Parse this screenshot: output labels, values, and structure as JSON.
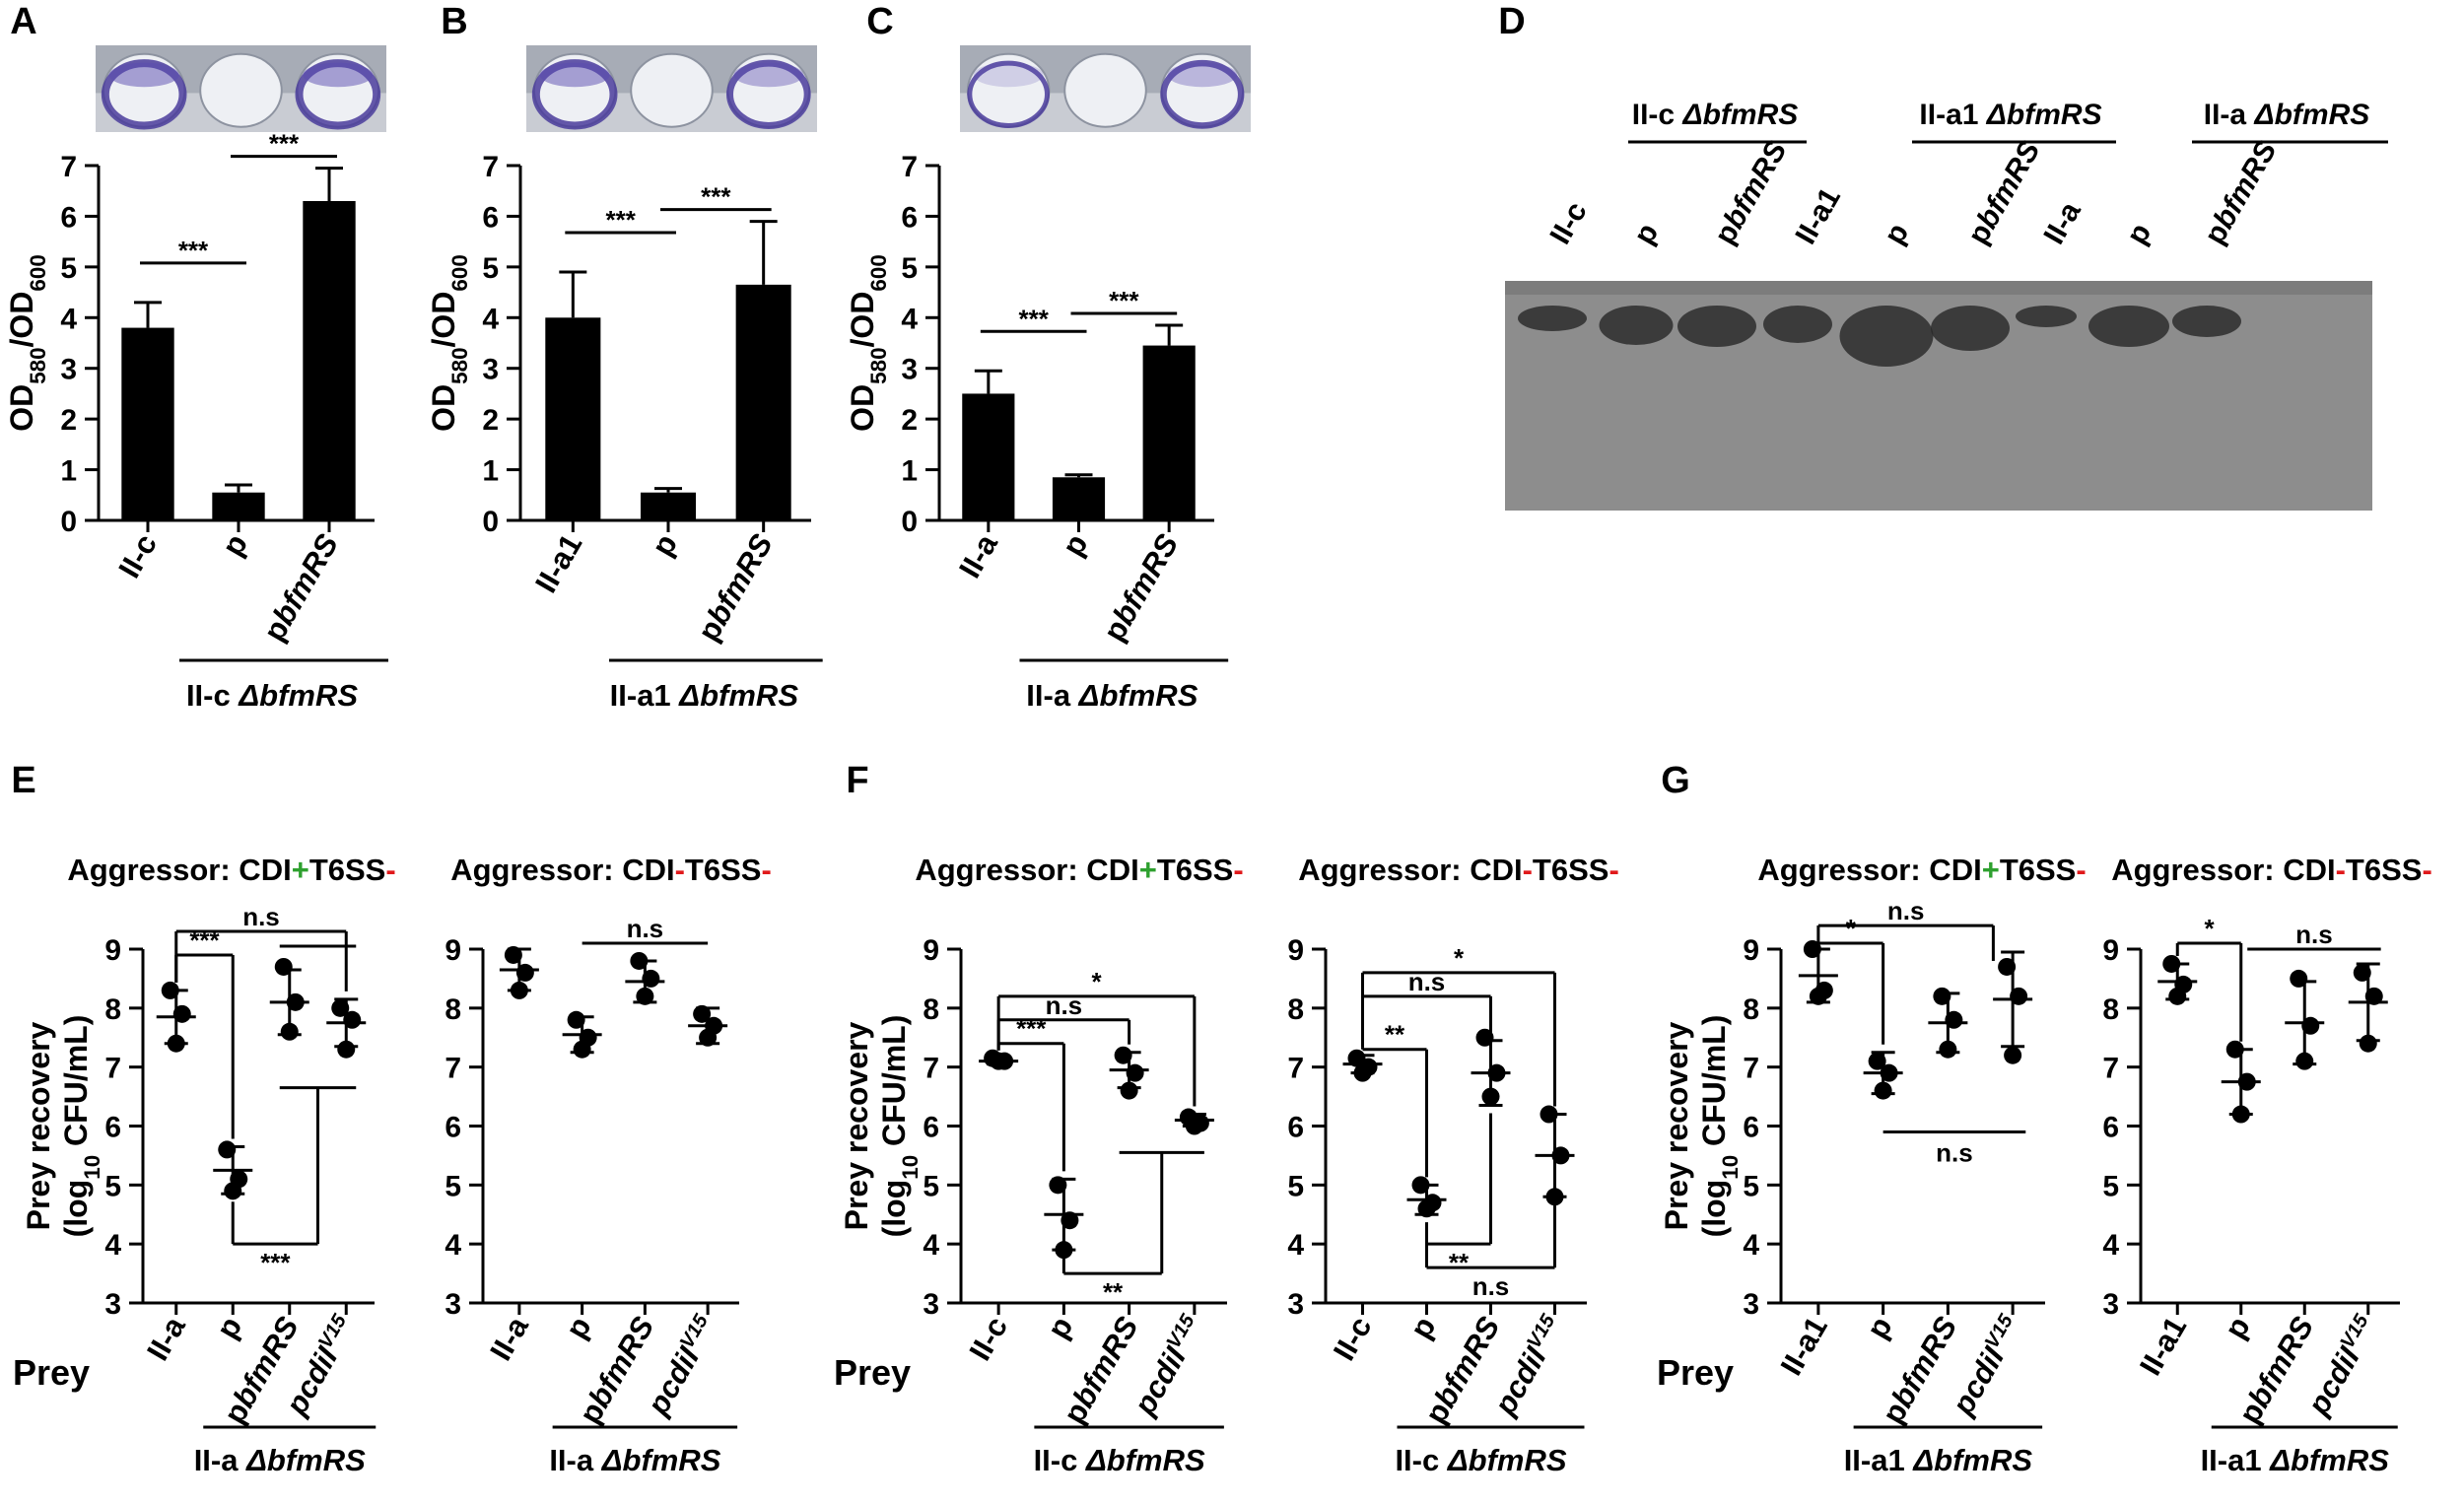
{
  "panel_letters": [
    "A",
    "B",
    "C",
    "D",
    "E",
    "F",
    "G"
  ],
  "colors": {
    "bar": "#000000",
    "plus": "#2ea02f",
    "minus": "#e0191b",
    "gel_bg": "#8d8d8d",
    "band": "#2a2a2a"
  },
  "gel": {
    "group_labels": [
      "II-c ΔbfmRS",
      "II-a1 ΔbfmRS",
      "II-a ΔbfmRS"
    ],
    "lanes": [
      "II-c",
      "p",
      "pbfmRS",
      "II-a1",
      "p",
      "pbfmRS",
      "II-a",
      "p",
      "pbfmRS"
    ]
  },
  "chart_data": [
    {
      "id": "A",
      "type": "bar",
      "ylabel": "OD580/OD600",
      "ylim": [
        0,
        7
      ],
      "yticks": [
        "0",
        "1",
        "2",
        "3",
        "4",
        "5",
        "6",
        "7"
      ],
      "categories": [
        "II-c",
        "p",
        "pbfmRS"
      ],
      "values": [
        3.8,
        0.55,
        6.3
      ],
      "errors": [
        0.5,
        0.15,
        0.65
      ],
      "group_label": "II-c ΔbfmRS",
      "significance": [
        {
          "from": 0,
          "to": 1,
          "label": "***"
        },
        {
          "from": 1,
          "to": 2,
          "label": "***"
        }
      ]
    },
    {
      "id": "B",
      "type": "bar",
      "ylabel": "OD580/OD600",
      "ylim": [
        0,
        7
      ],
      "yticks": [
        "0",
        "1",
        "2",
        "3",
        "4",
        "5",
        "6",
        "7"
      ],
      "categories": [
        "II-a1",
        "p",
        "pbfmRS"
      ],
      "values": [
        4.0,
        0.55,
        4.65
      ],
      "errors": [
        0.9,
        0.08,
        1.25
      ],
      "group_label": "II-a1 ΔbfmRS",
      "significance": [
        {
          "from": 0,
          "to": 1,
          "label": "***"
        },
        {
          "from": 1,
          "to": 2,
          "label": "***"
        }
      ]
    },
    {
      "id": "C",
      "type": "bar",
      "ylabel": "OD580/OD600",
      "ylim": [
        0,
        7
      ],
      "yticks": [
        "0",
        "1",
        "2",
        "3",
        "4",
        "5",
        "6",
        "7"
      ],
      "categories": [
        "II-a",
        "p",
        "pbfmRS"
      ],
      "values": [
        2.5,
        0.85,
        3.45
      ],
      "errors": [
        0.45,
        0.05,
        0.4
      ],
      "group_label": "II-a ΔbfmRS",
      "significance": [
        {
          "from": 0,
          "to": 1,
          "label": "***"
        },
        {
          "from": 1,
          "to": 2,
          "label": "***"
        }
      ]
    },
    {
      "id": "E1",
      "type": "scatter",
      "ylabel": "Prey recovery (log10 CFU/mL)",
      "ylim": [
        3,
        9
      ],
      "yticks": [
        "3",
        "4",
        "5",
        "6",
        "7",
        "8",
        "9"
      ],
      "aggressor": {
        "prefix": "Aggressor: CDI",
        "s1": "+",
        "mid": "T6SS",
        "s2": "-"
      },
      "categories": [
        "II-a",
        "p",
        "pbfmRS",
        "pcdiIV15"
      ],
      "points": [
        [
          8.3,
          7.9,
          7.4
        ],
        [
          5.6,
          5.1,
          4.9
        ],
        [
          8.7,
          8.1,
          7.6
        ],
        [
          8.0,
          7.8,
          7.3
        ]
      ],
      "means": [
        7.85,
        5.25,
        8.1,
        7.75
      ],
      "sd": [
        0.45,
        0.4,
        0.55,
        0.4
      ],
      "group_label": "II-a ΔbfmRS",
      "significance": [
        "n.s",
        "***",
        "***"
      ]
    },
    {
      "id": "E2",
      "type": "scatter",
      "ylim": [
        3,
        9
      ],
      "yticks": [
        "3",
        "4",
        "5",
        "6",
        "7",
        "8",
        "9"
      ],
      "aggressor": {
        "prefix": "Aggressor: CDI",
        "s1": "-",
        "mid": "T6SS",
        "s2": "-"
      },
      "categories": [
        "II-a",
        "p",
        "pbfmRS",
        "pcdiIV15"
      ],
      "points": [
        [
          8.9,
          8.6,
          8.3
        ],
        [
          7.8,
          7.5,
          7.3
        ],
        [
          8.8,
          8.5,
          8.2
        ],
        [
          7.9,
          7.7,
          7.5
        ]
      ],
      "means": [
        8.65,
        7.55,
        8.45,
        7.7
      ],
      "sd": [
        0.35,
        0.3,
        0.35,
        0.3
      ],
      "group_label": "II-a ΔbfmRS",
      "significance": [
        "n.s"
      ]
    },
    {
      "id": "F1",
      "type": "scatter",
      "ylabel": "Prey recovery (log10 CFU/mL)",
      "ylim": [
        3,
        9
      ],
      "yticks": [
        "3",
        "4",
        "5",
        "6",
        "7",
        "8",
        "9"
      ],
      "aggressor": {
        "prefix": "Aggressor: CDI",
        "s1": "+",
        "mid": "T6SS",
        "s2": "-"
      },
      "categories": [
        "II-c",
        "p",
        "pbfmRS",
        "pcdiIV15"
      ],
      "points": [
        [
          7.15,
          7.1,
          7.1
        ],
        [
          5.0,
          4.4,
          3.9
        ],
        [
          7.2,
          6.9,
          6.6
        ],
        [
          6.15,
          6.05,
          6.0
        ]
      ],
      "means": [
        7.1,
        4.5,
        6.95,
        6.1
      ],
      "sd": [
        0.05,
        0.6,
        0.3,
        0.1
      ],
      "group_label": "II-c ΔbfmRS",
      "significance": [
        "*",
        "n.s",
        "***",
        "**"
      ]
    },
    {
      "id": "F2",
      "type": "scatter",
      "ylim": [
        3,
        9
      ],
      "yticks": [
        "3",
        "4",
        "5",
        "6",
        "7",
        "8",
        "9"
      ],
      "aggressor": {
        "prefix": "Aggressor: CDI",
        "s1": "-",
        "mid": "T6SS",
        "s2": "-"
      },
      "categories": [
        "II-c",
        "p",
        "pbfmRS",
        "pcdiIV15"
      ],
      "points": [
        [
          7.15,
          7.0,
          6.9
        ],
        [
          5.0,
          4.7,
          4.6
        ],
        [
          7.5,
          6.9,
          6.5
        ],
        [
          6.2,
          5.5,
          4.8
        ]
      ],
      "means": [
        7.05,
        4.75,
        6.9,
        5.5
      ],
      "sd": [
        0.15,
        0.25,
        0.55,
        0.7
      ],
      "group_label": "II-c ΔbfmRS",
      "significance": [
        "*",
        "n.s",
        "**",
        "**",
        "n.s"
      ]
    },
    {
      "id": "G1",
      "type": "scatter",
      "ylabel": "Prey recovery (log10 CFU/mL)",
      "ylim": [
        3,
        9
      ],
      "yticks": [
        "3",
        "4",
        "5",
        "6",
        "7",
        "8",
        "9"
      ],
      "aggressor": {
        "prefix": "Aggressor: CDI",
        "s1": "+",
        "mid": "T6SS",
        "s2": "-"
      },
      "categories": [
        "II-a1",
        "p",
        "pbfmRS",
        "pcdiIV15"
      ],
      "points": [
        [
          9.0,
          8.3,
          8.2
        ],
        [
          7.1,
          6.9,
          6.6
        ],
        [
          8.2,
          7.8,
          7.3
        ],
        [
          8.7,
          8.2,
          7.2
        ]
      ],
      "means": [
        8.55,
        6.9,
        7.75,
        8.15
      ],
      "sd": [
        0.45,
        0.35,
        0.5,
        0.8
      ],
      "group_label": "II-a1 ΔbfmRS",
      "significance": [
        "n.s",
        "*",
        "n.s"
      ]
    },
    {
      "id": "G2",
      "type": "scatter",
      "ylim": [
        3,
        9
      ],
      "yticks": [
        "3",
        "4",
        "5",
        "6",
        "7",
        "8",
        "9"
      ],
      "aggressor": {
        "prefix": "Aggressor: CDI",
        "s1": "-",
        "mid": "T6SS",
        "s2": "-"
      },
      "categories": [
        "II-a1",
        "p",
        "pbfmRS",
        "pcdiIV15"
      ],
      "points": [
        [
          8.75,
          8.4,
          8.2
        ],
        [
          7.3,
          6.75,
          6.2
        ],
        [
          8.5,
          7.7,
          7.1
        ],
        [
          8.6,
          8.2,
          7.4
        ]
      ],
      "means": [
        8.45,
        6.75,
        7.75,
        8.1
      ],
      "sd": [
        0.3,
        0.55,
        0.7,
        0.65
      ],
      "group_label": "II-a1 ΔbfmRS",
      "significance": [
        "*",
        "n.s"
      ]
    }
  ],
  "prey_label": "Prey"
}
